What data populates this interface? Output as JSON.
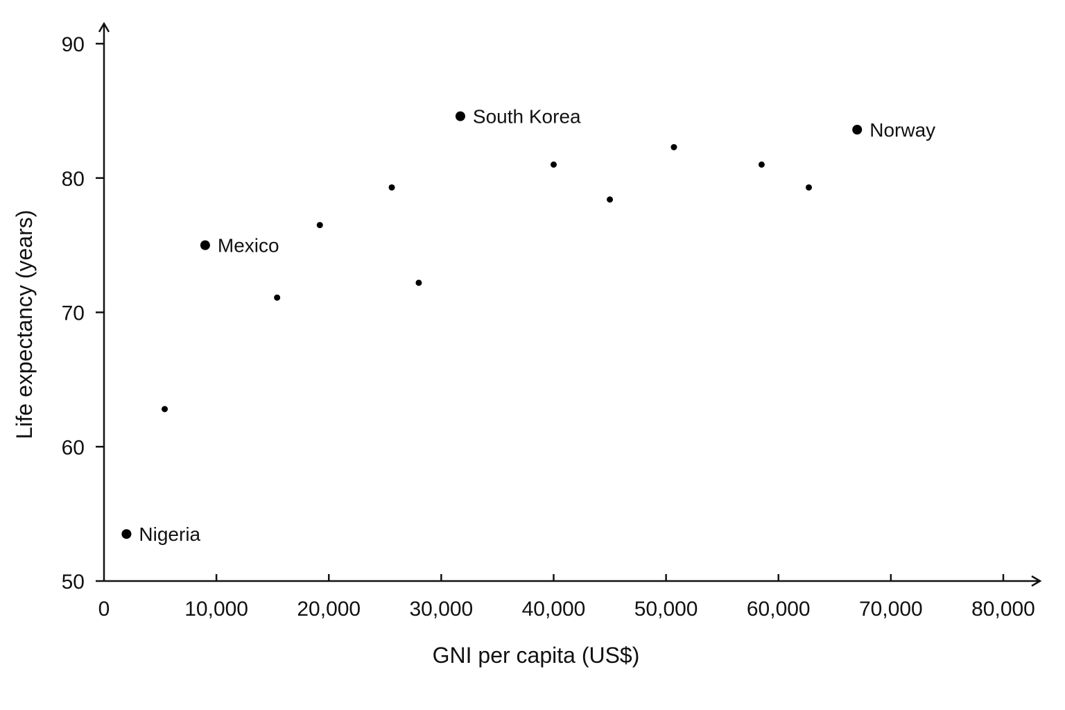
{
  "chart_data": {
    "type": "scatter",
    "title": "",
    "xlabel": "GNI per capita (US$)",
    "ylabel": "Life expectancy (years)",
    "xlim": [
      0,
      80000
    ],
    "ylim": [
      50,
      90
    ],
    "x_ticks": [
      {
        "value": 0,
        "label": "0"
      },
      {
        "value": 10000,
        "label": "10,000"
      },
      {
        "value": 20000,
        "label": "20,000"
      },
      {
        "value": 30000,
        "label": "30,000"
      },
      {
        "value": 40000,
        "label": "40,000"
      },
      {
        "value": 50000,
        "label": "50,000"
      },
      {
        "value": 60000,
        "label": "60,000"
      },
      {
        "value": 70000,
        "label": "70,000"
      },
      {
        "value": 80000,
        "label": "80,000"
      }
    ],
    "y_ticks": [
      {
        "value": 50,
        "label": "50"
      },
      {
        "value": 60,
        "label": "60"
      },
      {
        "value": 70,
        "label": "70"
      },
      {
        "value": 80,
        "label": "80"
      },
      {
        "value": 90,
        "label": "90"
      }
    ],
    "grid": false,
    "points": [
      {
        "x": 2000,
        "y": 53.5,
        "label": "Nigeria"
      },
      {
        "x": 5400,
        "y": 62.8,
        "label": ""
      },
      {
        "x": 9000,
        "y": 75.0,
        "label": "Mexico"
      },
      {
        "x": 15400,
        "y": 71.1,
        "label": ""
      },
      {
        "x": 19200,
        "y": 76.5,
        "label": ""
      },
      {
        "x": 25600,
        "y": 79.3,
        "label": ""
      },
      {
        "x": 28000,
        "y": 72.2,
        "label": ""
      },
      {
        "x": 31700,
        "y": 84.6,
        "label": "South Korea"
      },
      {
        "x": 40000,
        "y": 81.0,
        "label": ""
      },
      {
        "x": 45000,
        "y": 78.4,
        "label": ""
      },
      {
        "x": 50700,
        "y": 82.3,
        "label": ""
      },
      {
        "x": 58500,
        "y": 81.0,
        "label": ""
      },
      {
        "x": 62700,
        "y": 79.3,
        "label": ""
      },
      {
        "x": 67000,
        "y": 83.6,
        "label": "Norway"
      }
    ]
  },
  "colors": {
    "axis": "#111111",
    "point": "#000000",
    "background": "#ffffff"
  }
}
